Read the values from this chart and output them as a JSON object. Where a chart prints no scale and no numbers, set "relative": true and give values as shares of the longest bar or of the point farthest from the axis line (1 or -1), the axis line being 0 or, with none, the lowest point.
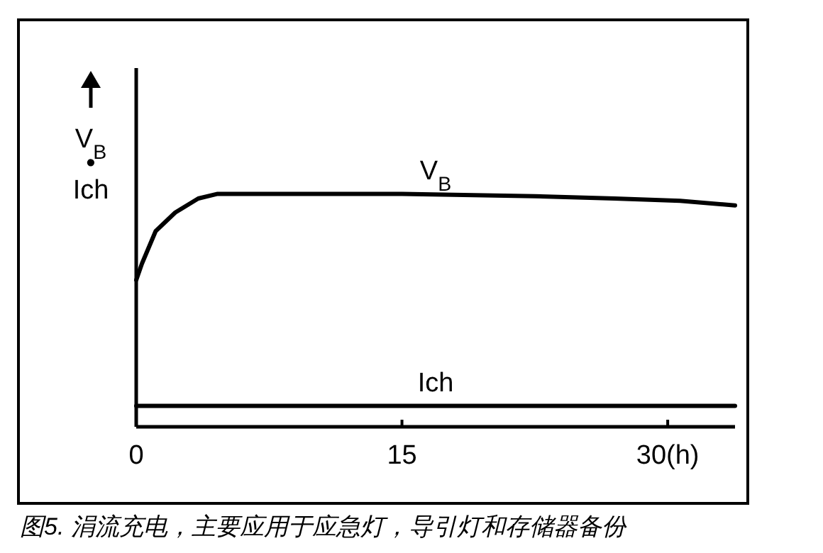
{
  "chart_data": {
    "type": "line",
    "relative": true,
    "ylabel": "V$_{B}$ • Ich",
    "annotations": [
      "图5. 涓流充电，主要应用于应急灯，导引灯和存储器备份"
    ],
    "xlim": [
      0,
      33.8
    ],
    "xticks": [
      0,
      15,
      {
        "value": 30,
        "label": "30(h)"
      }
    ],
    "tick_labels": "x",
    "marker": "none",
    "line_style": "solid",
    "series": [
      {
        "name": "V$_{B}$",
        "color": "#000000",
        "x": [
          0,
          0.32,
          1.1,
          2.2,
          3.5,
          4.6,
          15,
          22.5,
          27,
          30.7,
          33.8
        ],
        "values": [
          0.63,
          0.7,
          0.84,
          0.92,
          0.98,
          1.0,
          1.0,
          0.99,
          0.98,
          0.97,
          0.95
        ]
      },
      {
        "name": "Ich",
        "color": "#000000",
        "x": [
          0,
          33.8
        ],
        "values": [
          0.09,
          0.09
        ]
      }
    ]
  }
}
